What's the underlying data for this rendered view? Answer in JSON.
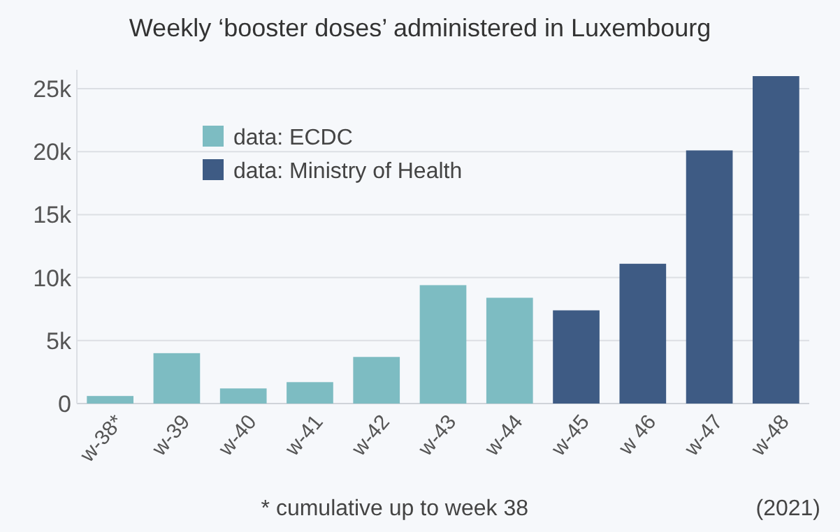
{
  "chart_data": {
    "type": "bar",
    "title": "Weekly ‘booster doses’ administered in Luxembourg",
    "categories": [
      "w-38*",
      "w-39",
      "w-40",
      "w-41",
      "w-42",
      "w-43",
      "w-44",
      "w-45",
      "w 46",
      "w-47",
      "w-48"
    ],
    "series": [
      {
        "name": "data: ECDC",
        "color": "#7dbcc2",
        "values": [
          600,
          4000,
          1200,
          1700,
          3700,
          9400,
          8400,
          null,
          null,
          null,
          null
        ]
      },
      {
        "name": "data: Ministry of Health",
        "color": "#3e5b84",
        "values": [
          null,
          null,
          null,
          null,
          null,
          null,
          null,
          7400,
          11100,
          20100,
          26000
        ]
      }
    ],
    "ylim": [
      0,
      26500
    ],
    "yticks": [
      0,
      {
        "value": 5000,
        "label": "5k"
      },
      {
        "value": 10000,
        "label": "10k"
      },
      {
        "value": 15000,
        "label": "15k"
      },
      {
        "value": 20000,
        "label": "20k"
      },
      {
        "value": 25000,
        "label": "25k"
      }
    ],
    "grid": "y",
    "legend": "top left",
    "annotations": [
      "* cumulative up to week 38",
      "(2021)"
    ]
  }
}
